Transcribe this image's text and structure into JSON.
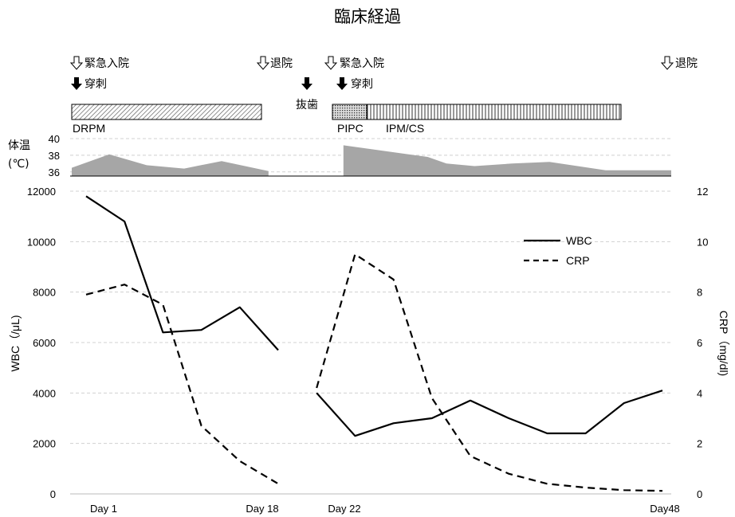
{
  "chart_data": {
    "type": "line",
    "title": "臨床経過",
    "temperature": {
      "label_line1": "体温",
      "label_line2": "(℃)",
      "ticks": [
        36,
        38,
        40
      ],
      "ylim": [
        35.5,
        40
      ],
      "segments": [
        {
          "x": [
            0,
            2,
            4,
            6,
            8,
            10.5
          ],
          "values": [
            36.5,
            38.1,
            36.8,
            36.4,
            37.3,
            36.1
          ]
        },
        {
          "x": [
            14.5,
            19,
            20,
            21.5,
            23.5,
            25.5,
            28.5,
            32
          ],
          "values": [
            39.2,
            37.8,
            37.0,
            36.7,
            37.0,
            37.2,
            36.2,
            36.2
          ]
        }
      ]
    },
    "x_labels": [
      "Day 1",
      "Day 18",
      "Day 22",
      "Day48"
    ],
    "series": [
      {
        "name": "WBC",
        "axis": "left",
        "style": "solid",
        "segments": [
          {
            "x": [
              1,
              3,
              5,
              7,
              9,
              11
            ],
            "values": [
              11800,
              10800,
              6400,
              6500,
              7400,
              5700
            ]
          },
          {
            "x": [
              13,
              15,
              17,
              19,
              21,
              23,
              25,
              27,
              29,
              31
            ],
            "values": [
              4000,
              2300,
              2800,
              3000,
              3700,
              3000,
              2400,
              2400,
              3600,
              4100
            ]
          }
        ]
      },
      {
        "name": "CRP",
        "axis": "right",
        "style": "dashed",
        "segments": [
          {
            "x": [
              1,
              3,
              5,
              7,
              9,
              11
            ],
            "values": [
              7.9,
              8.3,
              7.5,
              2.7,
              1.3,
              0.4
            ]
          },
          {
            "x": [
              13,
              15,
              17,
              19,
              21,
              23,
              25,
              27,
              29,
              31
            ],
            "values": [
              4.2,
              9.5,
              8.5,
              3.8,
              1.5,
              0.8,
              0.4,
              0.25,
              0.15,
              0.12
            ]
          }
        ]
      }
    ],
    "y_left": {
      "label": "WBC（/μL)",
      "ticks": [
        0,
        2000,
        4000,
        6000,
        8000,
        10000,
        12000
      ],
      "ylim": [
        0,
        12000
      ]
    },
    "y_right": {
      "label": "CRP（mg/dl)",
      "ticks": [
        0,
        2,
        4,
        6,
        8,
        10,
        12
      ],
      "ylim": [
        0,
        12
      ]
    },
    "grid": true,
    "legend_position": "top-right"
  },
  "events": {
    "admit1": "緊急入院",
    "puncture1": "穿刺",
    "discharge1": "退院",
    "extraction": "抜歯",
    "admit2": "緊急入院",
    "puncture2": "穿刺",
    "discharge2": "退院"
  },
  "drugs": {
    "drpm": "DRPM",
    "pipc": "PIPC",
    "ipmcs": "IPM/CS"
  }
}
